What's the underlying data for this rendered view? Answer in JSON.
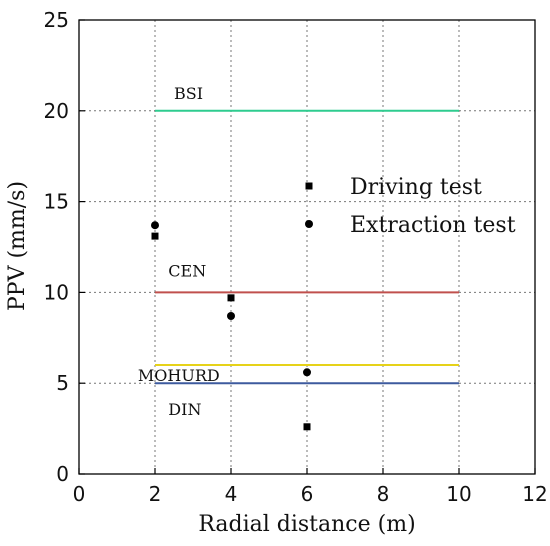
{
  "chart_data": {
    "type": "scatter",
    "title": "",
    "xlabel": "Radial distance (m)",
    "ylabel": "PPV (mm/s)",
    "xlim": [
      0,
      12
    ],
    "ylim": [
      0,
      25
    ],
    "xticks": [
      0,
      2,
      4,
      6,
      8,
      10,
      12
    ],
    "yticks": [
      0,
      5,
      10,
      15,
      20,
      25
    ],
    "grid": true,
    "legend_position": "upper-right",
    "series": [
      {
        "name": "Driving test",
        "marker": "square",
        "color": "#000000",
        "points": [
          {
            "x": 2,
            "y": 13.1
          },
          {
            "x": 4,
            "y": 9.7
          },
          {
            "x": 6,
            "y": 2.6
          }
        ]
      },
      {
        "name": "Extraction test",
        "marker": "circle",
        "color": "#000000",
        "points": [
          {
            "x": 2,
            "y": 13.7
          },
          {
            "x": 4,
            "y": 8.7
          },
          {
            "x": 6,
            "y": 5.6
          }
        ]
      }
    ],
    "reference_lines": [
      {
        "label": "BSI",
        "y": 20,
        "x_start": 2,
        "x_end": 10,
        "color": "#2ecc8f"
      },
      {
        "label": "CEN",
        "y": 10,
        "x_start": 2,
        "x_end": 10,
        "color": "#c0504d"
      },
      {
        "label": "MOHURD",
        "y": 6,
        "x_start": 2,
        "x_end": 10,
        "color": "#e6d219"
      },
      {
        "label": "DIN",
        "y": 5,
        "x_start": 2,
        "x_end": 10,
        "color": "#3d5a9e"
      }
    ]
  }
}
